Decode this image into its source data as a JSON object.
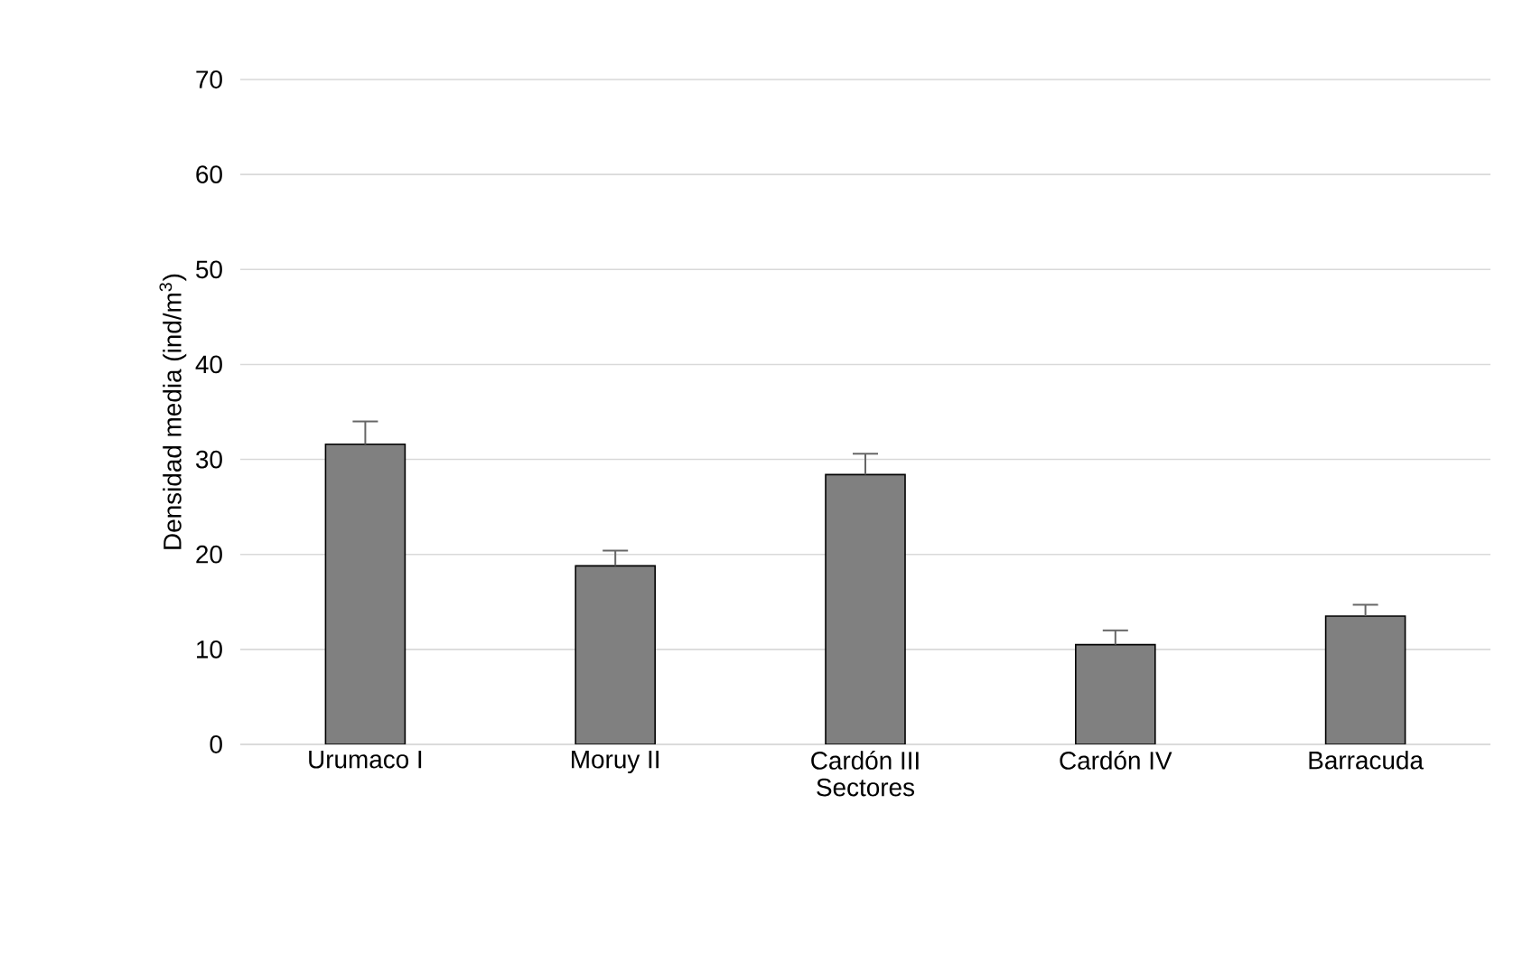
{
  "chart_data": {
    "type": "bar",
    "xlabel": "Sectores",
    "ylabel": "Densidad media (ind/m$^{3}$)",
    "categories": [
      "Urumaco I",
      "Moruy II",
      "Cardón III",
      "Cardón IV",
      "Barracuda"
    ],
    "values": [
      31.6,
      18.8,
      28.4,
      10.5,
      13.5
    ],
    "errors": [
      2.4,
      1.6,
      2.2,
      1.5,
      1.2
    ],
    "color": "#808080",
    "ylim": [
      0,
      70
    ],
    "yticks": [
      0,
      10,
      20,
      30,
      40,
      50,
      60,
      70
    ],
    "grid": "y"
  }
}
